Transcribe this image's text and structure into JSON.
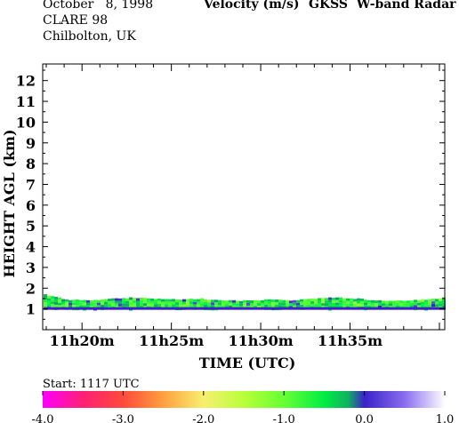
{
  "header": {
    "date": "October   8, 1998",
    "campaign": "CLARE 98",
    "location": "Chilbolton, UK",
    "quantity": "Velocity (m/s)",
    "instrument": "GKSS  W-band Radar"
  },
  "chart_data": {
    "type": "heatmap",
    "title": "Velocity (m/s)",
    "xlabel": "TIME (UTC)",
    "ylabel": "HEIGHT AGL (km)",
    "ylim": [
      0,
      12.8
    ],
    "xlim_minutes": [
      17.8,
      40.3
    ],
    "x_ticks": [
      {
        "minute": 20,
        "label": "11h20m"
      },
      {
        "minute": 25,
        "label": "11h25m"
      },
      {
        "minute": 30,
        "label": "11h30m"
      },
      {
        "minute": 35,
        "label": "11h35m"
      }
    ],
    "y_ticks": [
      1,
      2,
      3,
      4,
      5,
      6,
      7,
      8,
      9,
      10,
      11,
      12
    ],
    "colorbar": {
      "range": [
        -4.0,
        1.0
      ],
      "tick_labels": [
        "-4.0",
        "-3.0",
        "-2.0",
        "-1.0",
        "0.0",
        "1.0"
      ],
      "stops": [
        {
          "value": -4.0,
          "color": "#ff00ff"
        },
        {
          "value": -3.5,
          "color": "#ff1f75"
        },
        {
          "value": -3.0,
          "color": "#ff4a3a"
        },
        {
          "value": -2.5,
          "color": "#ffa040"
        },
        {
          "value": -2.0,
          "color": "#f7ef6f"
        },
        {
          "value": -1.5,
          "color": "#b8ff3a"
        },
        {
          "value": -1.0,
          "color": "#66ff33"
        },
        {
          "value": -0.5,
          "color": "#00ee44"
        },
        {
          "value": -0.2,
          "color": "#10b060"
        },
        {
          "value": 0.0,
          "color": "#3a22c8"
        },
        {
          "value": 0.5,
          "color": "#8a6cf0"
        },
        {
          "value": 1.0,
          "color": "#ffffff"
        }
      ]
    },
    "echo_layer": {
      "base_km": 1.0,
      "top_km_profile": [
        1.7,
        1.45,
        1.4,
        1.5,
        1.55,
        1.5,
        1.45,
        1.5,
        1.4,
        1.4,
        1.45,
        1.4,
        1.5,
        1.55,
        1.5,
        1.4,
        1.4,
        1.45,
        1.55
      ],
      "dominant_velocity": -0.6,
      "base_velocity": 0.0
    },
    "start_label": "Start: 1117 UTC"
  }
}
